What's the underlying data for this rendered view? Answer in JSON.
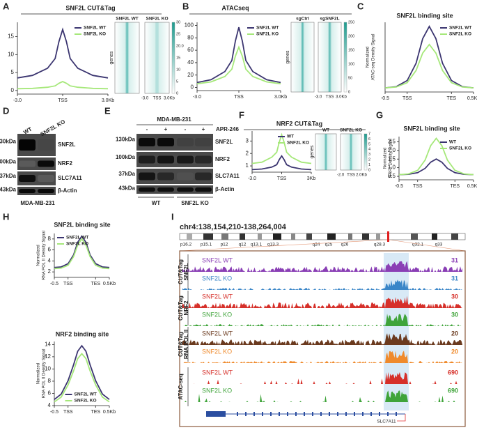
{
  "chart_data": [
    {
      "type": "line",
      "title": "SNF2L CUT&Tag",
      "x": [
        -3,
        -2,
        -1,
        -0.5,
        -0.25,
        0,
        0.25,
        0.5,
        1,
        2,
        3
      ],
      "series": [
        {
          "name": "SNF2L WT",
          "color": "#3b3570",
          "values": [
            3.5,
            4.2,
            6.2,
            8.9,
            13.6,
            17,
            13.6,
            8.9,
            6.2,
            4.2,
            3.5
          ]
        },
        {
          "name": "SNF2L KO",
          "color": "#a6e87a",
          "values": [
            0.5,
            0.6,
            0.9,
            1.3,
            2,
            2.5,
            2,
            1.3,
            0.9,
            0.6,
            0.5
          ]
        }
      ],
      "xlim": [
        -3,
        3
      ],
      "xticks": [
        {
          "value": -3,
          "label": "-3.0"
        },
        {
          "value": 0,
          "label": "TSS"
        },
        {
          "value": 3,
          "label": "3.0Kb"
        }
      ],
      "ylim": [
        -1,
        19
      ],
      "yticks": [
        0,
        5,
        10,
        15
      ],
      "legend": "upper right"
    },
    {
      "type": "line",
      "title": "ATACseq",
      "x": [
        -3,
        -2,
        -1,
        -0.5,
        -0.25,
        0,
        0.25,
        0.5,
        1,
        2,
        3
      ],
      "series": [
        {
          "name": "SNF2L WT",
          "color": "#3b3570",
          "values": [
            8,
            12.5,
            25.8,
            43.6,
            74.8,
            97,
            74.8,
            43.6,
            25.8,
            12.5,
            8
          ]
        },
        {
          "name": "SNF2L KO",
          "color": "#a6e87a",
          "values": [
            6,
            9,
            17.8,
            29.6,
            50.3,
            65,
            50.3,
            29.6,
            17.8,
            9,
            6
          ]
        }
      ],
      "xlim": [
        -3,
        3
      ],
      "xticks": [
        {
          "value": -3,
          "label": "-3.0"
        },
        {
          "value": 0,
          "label": "TSS"
        },
        {
          "value": 3,
          "label": "3.0Kb"
        }
      ],
      "ylim": [
        -5,
        105
      ],
      "yticks": [
        0,
        20,
        40,
        60,
        80,
        100
      ],
      "legend": "upper right"
    },
    {
      "type": "line",
      "title": "SNF2L binding site",
      "y_label": [
        "Normalized",
        "ATAC-seq Density Signal"
      ],
      "x": [
        -0.5,
        -0.25,
        0,
        0.2,
        0.35,
        0.5,
        0.65,
        0.8,
        1,
        1.25,
        1.5
      ],
      "series": [
        {
          "name": "SNF2L WT",
          "color": "#3b3570",
          "values": [
            5,
            6.5,
            14,
            35,
            65,
            80,
            65,
            35,
            14,
            6.5,
            5
          ]
        },
        {
          "name": "SNF2L KO",
          "color": "#a6e87a",
          "values": [
            5,
            6,
            11.4,
            26.2,
            47.4,
            58,
            47.4,
            26.2,
            11.4,
            6,
            5
          ]
        }
      ],
      "xlim": [
        -0.5,
        1.5
      ],
      "xticks": [
        -0.5,
        {
          "value": 0,
          "label": "TSS"
        },
        {
          "value": 1,
          "label": "TES"
        },
        {
          "value": 1.5,
          "label": "0.5Kb"
        }
      ],
      "ylim": [
        0,
        85
      ],
      "yticks": [],
      "legend": "upper right"
    },
    {
      "type": "line",
      "title": "NRF2 CUT&Tag",
      "x": [
        -3,
        -2,
        -1,
        -0.5,
        -0.25,
        0,
        0.25,
        0.5,
        1,
        2,
        3
      ],
      "series": [
        {
          "name": "WT",
          "color": "#3b3570",
          "values": [
            0.7,
            0.75,
            0.9,
            1.1,
            1.5,
            1.8,
            1.5,
            1.1,
            0.9,
            0.75,
            0.7
          ]
        },
        {
          "name": "SNF2L KO",
          "color": "#a6e87a",
          "values": [
            1.2,
            1.3,
            1.7,
            2.1,
            2.9,
            3.5,
            2.9,
            2.1,
            1.7,
            1.3,
            1.2
          ]
        }
      ],
      "xlim": [
        -3,
        3
      ],
      "xticks": [
        {
          "value": -3,
          "label": "-3.0"
        },
        {
          "value": 0,
          "label": "TSS"
        },
        {
          "value": 3,
          "label": "3Kb"
        }
      ],
      "ylim": [
        0.5,
        3.8
      ],
      "yticks": [
        1,
        2,
        3
      ],
      "legend": "upper right"
    },
    {
      "type": "line",
      "title": "SNF2L binding site",
      "y_label": [
        "Normalized",
        "NRF2 Density Signal"
      ],
      "x": [
        -0.5,
        -0.25,
        0,
        0.2,
        0.35,
        0.5,
        0.65,
        0.8,
        1,
        1.25,
        1.5
      ],
      "series": [
        {
          "name": "WT",
          "color": "#3b3570",
          "values": [
            0.6,
            0.62,
            0.71,
            0.96,
            1.32,
            1.5,
            1.32,
            0.96,
            0.71,
            0.62,
            0.6
          ]
        },
        {
          "name": "SNF2L KO",
          "color": "#a6e87a",
          "values": [
            0.6,
            0.64,
            0.85,
            1.44,
            2.28,
            2.7,
            2.28,
            1.44,
            0.85,
            0.64,
            0.6
          ]
        }
      ],
      "xlim": [
        -0.5,
        1.5
      ],
      "xticks": [
        -0.5,
        {
          "value": 0,
          "label": "TSS"
        },
        {
          "value": 1,
          "label": "TES"
        },
        {
          "value": 1.5,
          "label": "0.5Kb"
        }
      ],
      "ylim": [
        0.3,
        2.8
      ],
      "yticks": [
        0.5,
        {
          "value": 1,
          "label": "1.0"
        },
        1.5,
        {
          "value": 2,
          "label": "2.0"
        },
        2.5
      ],
      "legend": "upper right"
    },
    {
      "type": "line",
      "title": "SNF2L binding site",
      "y_label": [
        "Normalized",
        "RNA POL II Density Signal"
      ],
      "x": [
        -0.5,
        -0.25,
        0,
        0.2,
        0.35,
        0.5,
        0.65,
        0.8,
        1,
        1.25,
        1.5
      ],
      "series": [
        {
          "name": "SNF2L WT",
          "color": "#3b3570",
          "values": [
            2.8,
            2.9,
            3.5,
            5.1,
            7.4,
            8.5,
            7.4,
            5.1,
            3.5,
            2.9,
            2.8
          ]
        },
        {
          "name": "SNF2L KO",
          "color": "#a6e87a",
          "values": [
            2.6,
            2.7,
            3.2,
            4.8,
            6.9,
            8,
            6.9,
            4.8,
            3.2,
            2.7,
            2.6
          ]
        }
      ],
      "xlim": [
        -0.5,
        1.5
      ],
      "xticks": [
        -0.5,
        {
          "value": 0,
          "label": "TSS"
        },
        {
          "value": 1,
          "label": "TES"
        },
        {
          "value": 1.5,
          "label": "0.5Kb"
        }
      ],
      "ylim": [
        1,
        9
      ],
      "yticks": [
        2,
        4,
        6,
        8
      ],
      "legend": "upper left"
    },
    {
      "type": "line",
      "title": "NRF2 binding site",
      "y_label": [
        "Normalized",
        "RNA POL II Density Signal"
      ],
      "x": [
        -0.5,
        -0.25,
        0,
        0.2,
        0.35,
        0.5,
        0.65,
        0.8,
        1,
        1.25,
        1.5
      ],
      "series": [
        {
          "name": "SNF2L WT",
          "color": "#3b3570",
          "values": [
            5,
            5.9,
            8.1,
            10.7,
            12.9,
            13.8,
            12.9,
            10.7,
            8.1,
            5.9,
            5
          ]
        },
        {
          "name": "SNF2L KO",
          "color": "#a6e87a",
          "values": [
            4.6,
            5.4,
            7.4,
            9.7,
            11.7,
            12.5,
            11.7,
            9.7,
            7.4,
            5.4,
            4.6
          ]
        }
      ],
      "xlim": [
        -0.5,
        1.5
      ],
      "xticks": [
        -0.5,
        {
          "value": 0,
          "label": "TSS"
        },
        {
          "value": 1,
          "label": "TES"
        },
        {
          "value": 1.5,
          "label": "0.5Kb"
        }
      ],
      "ylim": [
        4,
        14.5
      ],
      "yticks": [
        4,
        6,
        8,
        10,
        12,
        14
      ],
      "legend": "lower center"
    }
  ],
  "letters": [
    "A",
    "B",
    "C",
    "D",
    "E",
    "F",
    "G",
    "H",
    "I"
  ],
  "heatmaps": {
    "A": {
      "columns": [
        "SNF2L WT",
        "SNF2L KO"
      ],
      "row_label": "genes",
      "x_labels": [
        "-3.0",
        "TSS",
        "3.0Kb"
      ],
      "scale": [
        "30",
        "25",
        "20.0",
        "15",
        "10",
        "5",
        "0"
      ]
    },
    "B": {
      "columns": [
        "sgCtrl",
        "sgSNF2L"
      ],
      "row_label": "genes",
      "x_labels": [
        "-3.0",
        "TSS",
        "3.0Kb"
      ],
      "scale": [
        "250",
        "200",
        "150",
        "100",
        "50",
        "0"
      ]
    },
    "F": {
      "columns": [
        "WT",
        "SNF2L KO"
      ],
      "row_label": "genes",
      "x_labels": [
        "-2.0",
        "TSS",
        "2.0Kb"
      ],
      "scale": [
        "7",
        "6",
        "5",
        "4",
        "3",
        "2",
        "1",
        "0"
      ]
    }
  },
  "blot_D": {
    "lanes": [
      "WT",
      "SNF2L KO"
    ],
    "sizes": [
      "130kDa",
      "100kDa",
      "37kDa",
      "43kDa"
    ],
    "proteins": [
      "SNF2L",
      "NRF2",
      "SLC7A11",
      "β-Actin"
    ],
    "cell_line": "MDA-MB-231"
  },
  "blot_E": {
    "cell_line": "MDA-MB-231",
    "treatment": "APR-246",
    "signs": [
      "-",
      "+",
      "-",
      "+"
    ],
    "sizes": [
      "130kDa",
      "100kDa",
      "37kDa",
      "43kDa"
    ],
    "proteins": [
      "SNF2L",
      "NRF2",
      "SLC7A11",
      "β-Actin"
    ],
    "groups": [
      "WT",
      "SNF2L KO"
    ]
  },
  "browser": {
    "locus": "chr4:138,154,210-138,264,004",
    "bands": [
      "p16.2",
      "p15.1",
      "p12",
      "q12",
      "q13.1",
      "q13.3",
      "q24",
      "q25",
      "q26",
      "q28.3",
      "q32.1",
      "q33"
    ],
    "groups": [
      [
        "CUT&Tag",
        "SNF2L"
      ],
      [
        "CUT&Tag",
        "NRF2"
      ],
      [
        "CUT&Tag",
        "RNA POL II"
      ],
      [
        "ATAC-seq"
      ]
    ],
    "tracks": [
      {
        "name": "SNF2L WT",
        "scale": "31",
        "color": "#8a3fb5"
      },
      {
        "name": "SNF2L KO",
        "scale": "31",
        "color": "#3a86c8"
      },
      {
        "name": "SNF2L WT",
        "scale": "30",
        "color": "#d6302a"
      },
      {
        "name": "SNF2L KO",
        "scale": "30",
        "color": "#3fa43a"
      },
      {
        "name": "SNF2L WT",
        "scale": "20",
        "color": "#6b3a1e"
      },
      {
        "name": "SNF2L KO",
        "scale": "20",
        "color": "#ef8a2c"
      },
      {
        "name": "SNF2L WT",
        "scale": "690",
        "color": "#d6302a"
      },
      {
        "name": "SNF2L KO",
        "scale": "690",
        "color": "#3fa43a"
      }
    ],
    "gene": "SLC7A11"
  }
}
